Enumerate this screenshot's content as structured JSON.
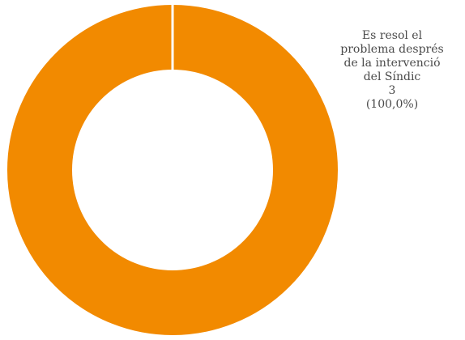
{
  "chart_data": {
    "type": "pie",
    "donut": true,
    "slices": [
      {
        "label_lines": [
          "Es resol el",
          "problema després",
          "de la intervenció",
          "del Síndic"
        ],
        "value": 3,
        "percent_text": "(100,0%)",
        "value_text": "3",
        "color": "#F28A00"
      }
    ],
    "legend": false
  }
}
